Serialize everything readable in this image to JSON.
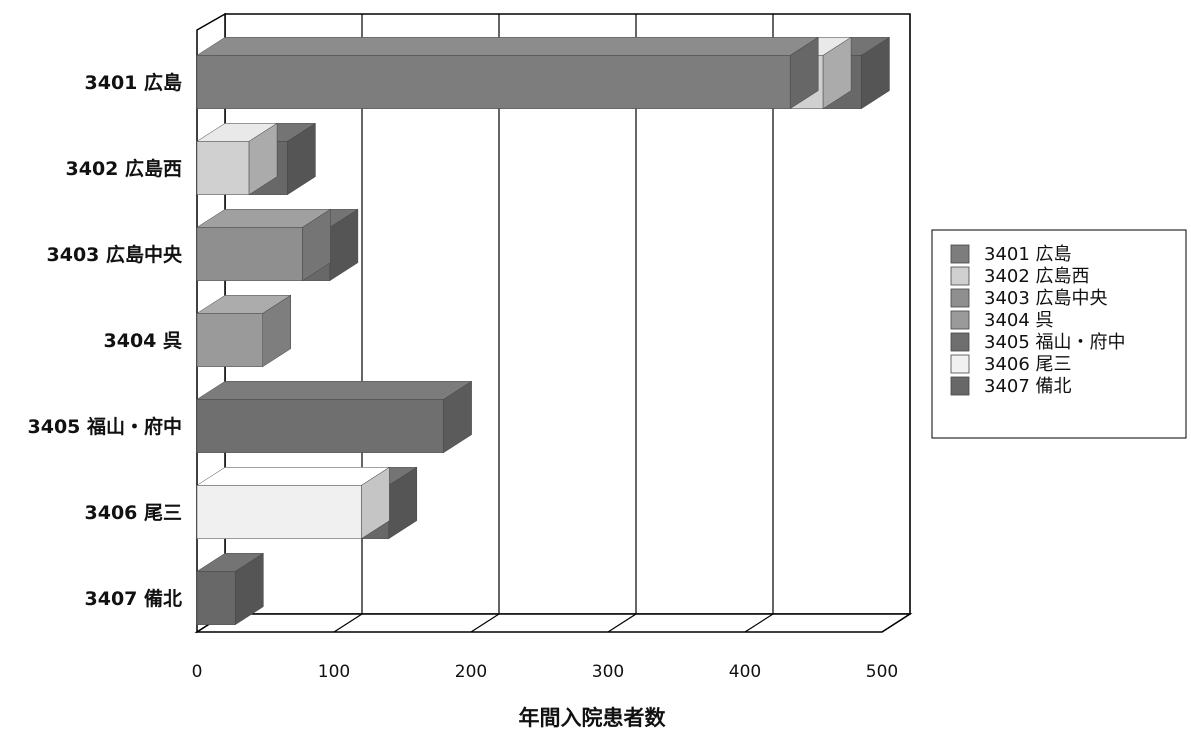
{
  "chart_data": {
    "type": "bar",
    "orientation": "horizontal",
    "style": "3d-stacked",
    "title": "",
    "xlabel": "年間入院患者数",
    "ylabel": "",
    "xlim": [
      0,
      500
    ],
    "xticks": [
      "0",
      "100",
      "200",
      "300",
      "400",
      "500"
    ],
    "grid": true,
    "legend_position": "right",
    "categories": [
      "3401 広島",
      "3402 広島西",
      "3403 広島中央",
      "3404 呉",
      "3405 福山・府中",
      "3406 尾三",
      "3407 備北"
    ],
    "series": [
      {
        "name": "3401 広島",
        "color": "#7d7d7d",
        "values": [
          433,
          0,
          0,
          0,
          0,
          0,
          0
        ]
      },
      {
        "name": "3402 広島西",
        "color": "#d0d0d0",
        "values": [
          24,
          38,
          0,
          0,
          0,
          0,
          0
        ]
      },
      {
        "name": "3403 広島中央",
        "color": "#8f8f8f",
        "values": [
          0,
          0,
          77,
          0,
          0,
          0,
          0
        ]
      },
      {
        "name": "3404 呉",
        "color": "#9a9a9a",
        "values": [
          0,
          0,
          0,
          48,
          0,
          0,
          0
        ]
      },
      {
        "name": "3405 福山・府中",
        "color": "#6f6f6f",
        "values": [
          0,
          0,
          0,
          0,
          180,
          0,
          0
        ]
      },
      {
        "name": "3406 尾三",
        "color": "#f0f0f0",
        "values": [
          0,
          0,
          0,
          0,
          0,
          120,
          0
        ]
      },
      {
        "name": "3407 備北",
        "color": "#686868",
        "values": [
          28,
          28,
          20,
          0,
          0,
          20,
          28
        ]
      }
    ]
  }
}
